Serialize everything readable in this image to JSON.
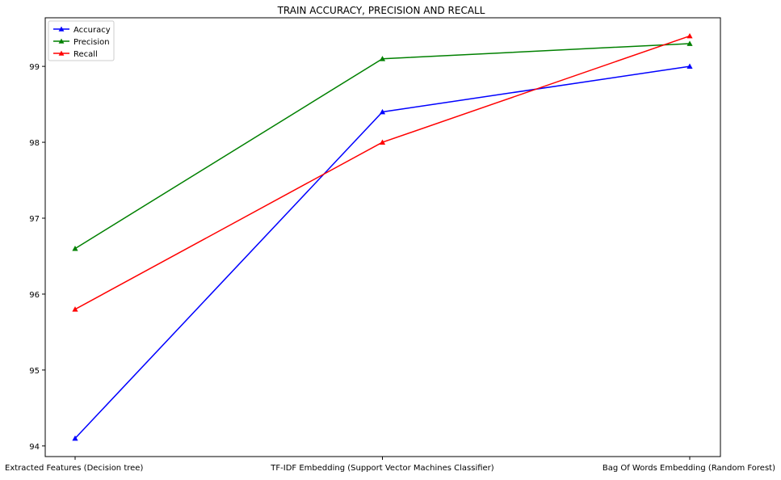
{
  "chart_data": {
    "type": "line",
    "title": "TRAIN ACCURACY, PRECISION AND RECALL",
    "xlabel": "",
    "ylabel": "",
    "categories": [
      "Extracted Features (Decision tree)",
      "TF-IDF Embedding (Support Vector Machines Classifier)",
      "Bag Of Words Embedding (Random Forest)"
    ],
    "series": [
      {
        "name": "Accuracy",
        "color": "#0000ff",
        "marker": "triangle",
        "values": [
          94.1,
          98.4,
          99.0
        ]
      },
      {
        "name": "Precision",
        "color": "#008000",
        "marker": "triangle",
        "values": [
          96.6,
          99.1,
          99.3
        ]
      },
      {
        "name": "Recall",
        "color": "#ff0000",
        "marker": "triangle",
        "values": [
          95.8,
          98.0,
          99.4
        ]
      }
    ],
    "ylim": [
      93.86,
      99.64
    ],
    "yticks": [
      94,
      95,
      96,
      97,
      98,
      99
    ],
    "grid": false,
    "legend_position": "top-left"
  }
}
